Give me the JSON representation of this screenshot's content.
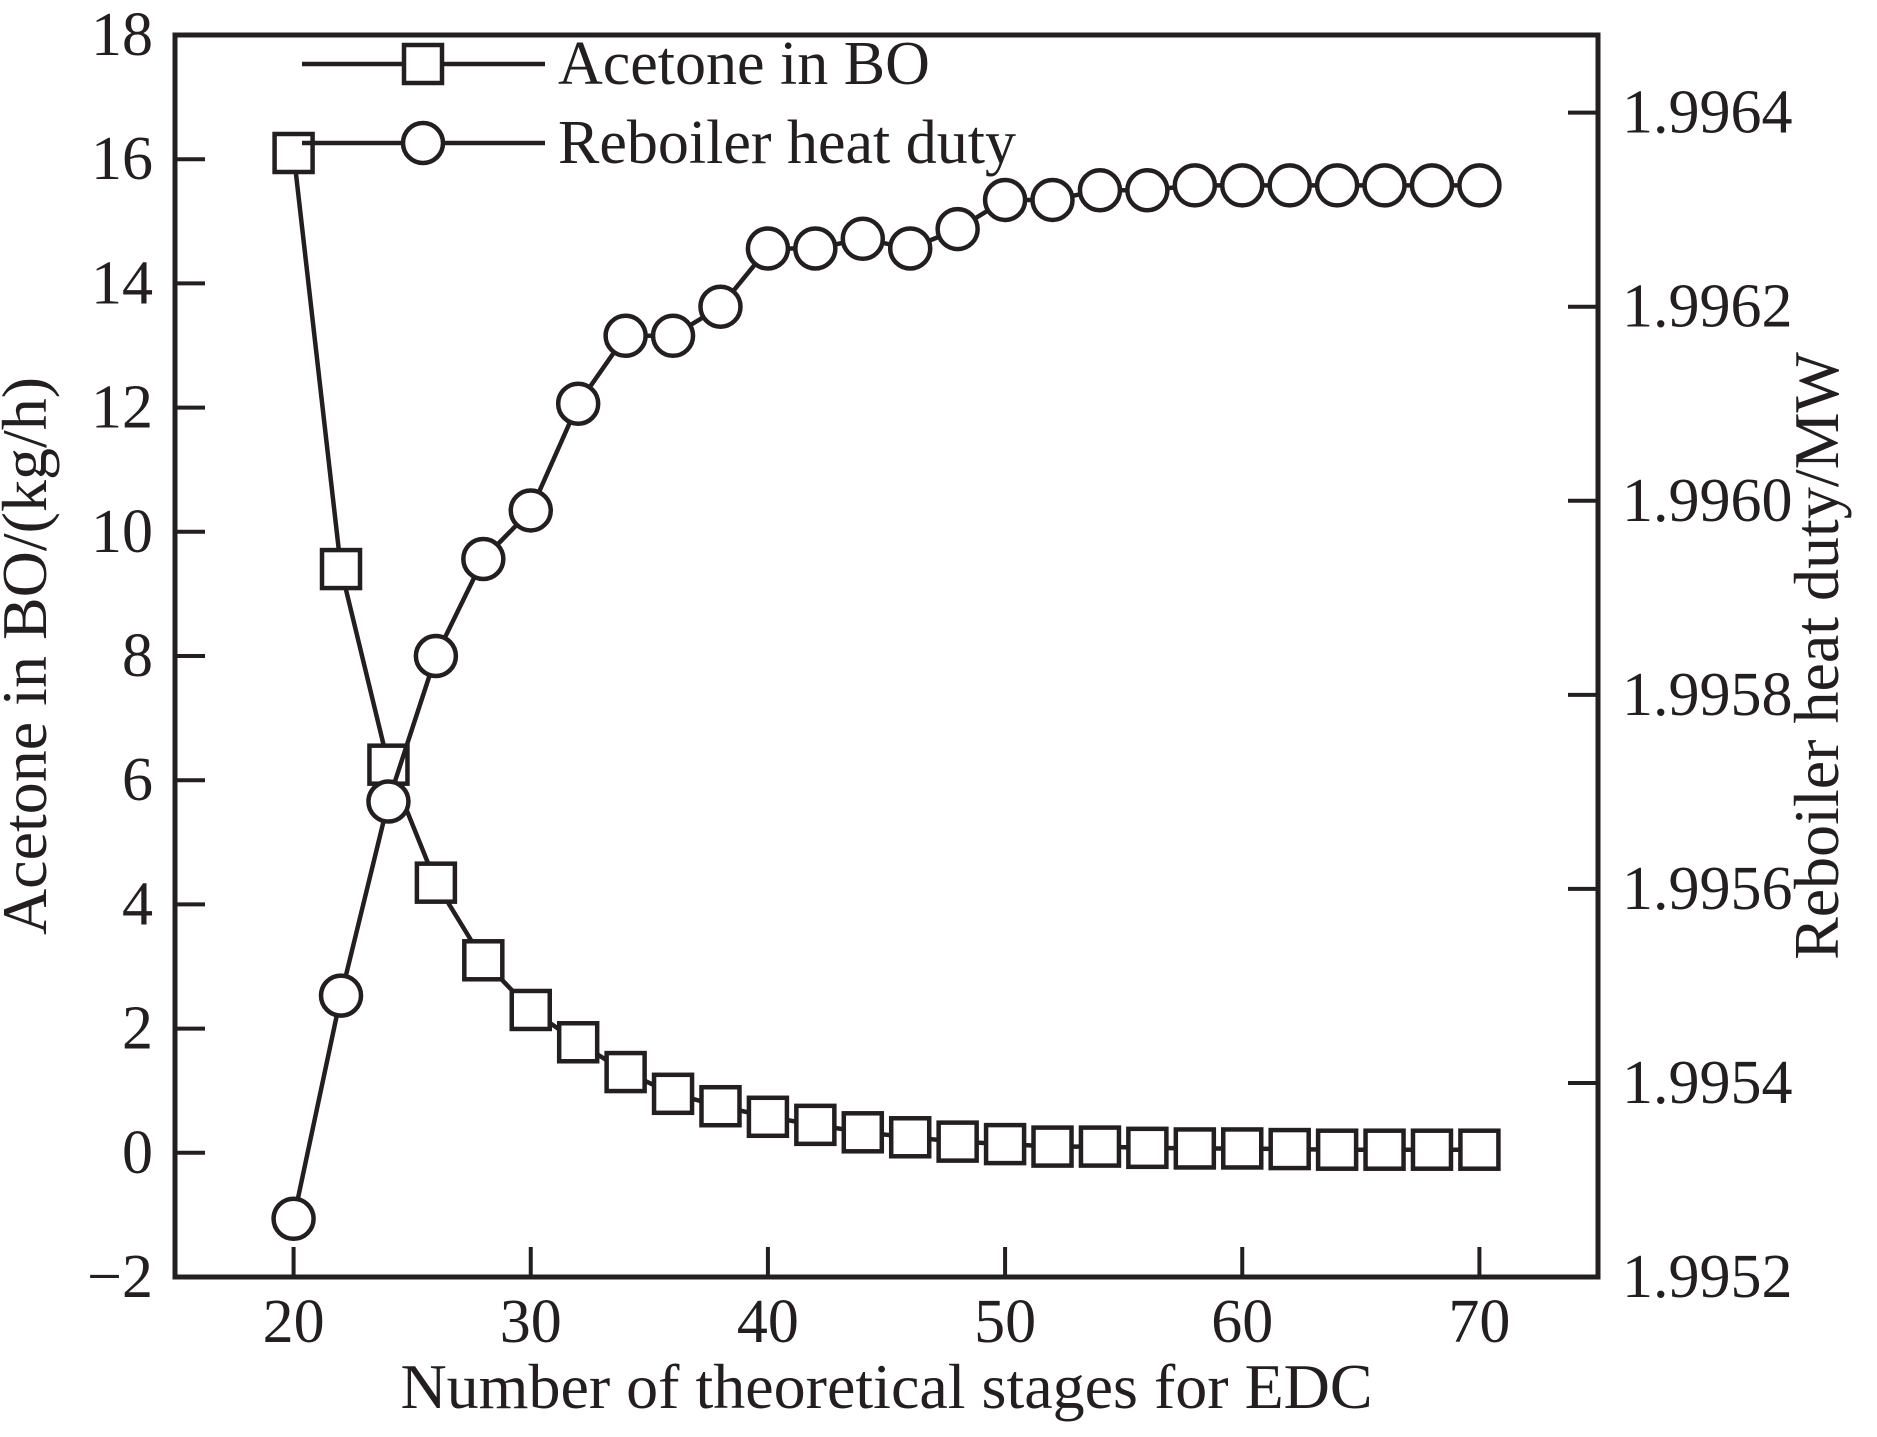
{
  "figure": {
    "background": "#ffffff",
    "line_color": "#231f20"
  },
  "legend": {
    "position": "top-left-inside",
    "items": [
      {
        "label": "Acetone in BO",
        "marker": "square"
      },
      {
        "label": "Reboiler heat duty",
        "marker": "circle"
      }
    ]
  },
  "chart_data": {
    "type": "line",
    "title": "",
    "xlabel": "Number of theoretical stages for EDC",
    "ylabel_left": "Acetone in BO/(kg/h)",
    "ylabel_right": "Reboiler heat duty/MW",
    "xlim": [
      15,
      75
    ],
    "ylim_left": [
      -2,
      18
    ],
    "ylim_right": [
      1.9952,
      1.99648
    ],
    "grid": false,
    "x": [
      20,
      22,
      24,
      26,
      28,
      30,
      32,
      34,
      36,
      38,
      40,
      42,
      44,
      46,
      48,
      50,
      52,
      54,
      56,
      58,
      60,
      62,
      64,
      66,
      68,
      70
    ],
    "series": [
      {
        "name": "Acetone in BO",
        "axis": "left",
        "marker": "square",
        "units": "kg/h",
        "values": [
          16.1,
          9.4,
          6.25,
          4.35,
          3.1,
          2.3,
          1.78,
          1.3,
          0.95,
          0.75,
          0.58,
          0.45,
          0.33,
          0.25,
          0.18,
          0.14,
          0.1,
          0.1,
          0.08,
          0.07,
          0.07,
          0.06,
          0.05,
          0.05,
          0.05,
          0.05
        ]
      },
      {
        "name": "Reboiler heat duty",
        "axis": "right",
        "marker": "circle",
        "units": "MW",
        "values": [
          1.99526,
          1.99549,
          1.99569,
          1.99584,
          1.99594,
          1.99599,
          1.9961,
          1.99617,
          1.99617,
          1.9962,
          1.99626,
          1.99626,
          1.99627,
          1.99626,
          1.99628,
          1.99631,
          1.99631,
          1.99632,
          1.99632,
          1.996325,
          1.996325,
          1.996325,
          1.996325,
          1.996325,
          1.996325,
          1.996325
        ]
      }
    ],
    "xticks": [
      20,
      30,
      40,
      50,
      60,
      70
    ],
    "xtick_labels": [
      "20",
      "30",
      "40",
      "50",
      "60",
      "70"
    ],
    "yticks_left": [
      -2,
      0,
      2,
      4,
      6,
      8,
      10,
      12,
      14,
      16,
      18
    ],
    "ytick_labels_left": [
      "−2",
      "0",
      "2",
      "4",
      "6",
      "8",
      "10",
      "12",
      "14",
      "16",
      "18"
    ],
    "yticks_right": [
      1.9952,
      1.9954,
      1.9956,
      1.9958,
      1.996,
      1.9962,
      1.9964
    ],
    "ytick_labels_right": [
      "1.9952",
      "1.9954",
      "1.9956",
      "1.9958",
      "1.9960",
      "1.9962",
      "1.9964"
    ]
  }
}
